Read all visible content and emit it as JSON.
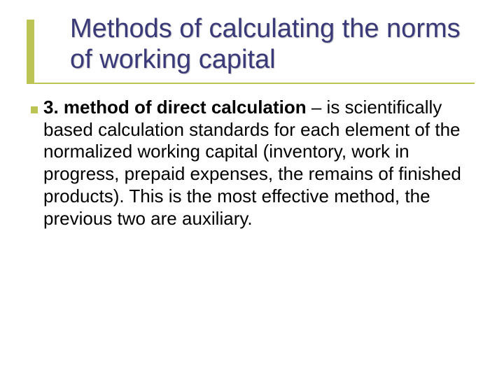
{
  "slide": {
    "title": "Methods of calculating the norms of working capital",
    "title_color": "#3a3a7a",
    "title_fontsize": 38,
    "accent_color": "#bcc454",
    "background_color": "#ffffff",
    "body_text_color": "#000000",
    "body_fontsize": 26,
    "item": {
      "number": "3.",
      "bold_lead": "method of direct calculation",
      "rest": " – is scientifically based calculation standards for each element of the normalized working capital (inventory, work in progress, prepaid expenses, the remains of finished products). This is the most effective method, the previous two are auxiliary."
    }
  }
}
